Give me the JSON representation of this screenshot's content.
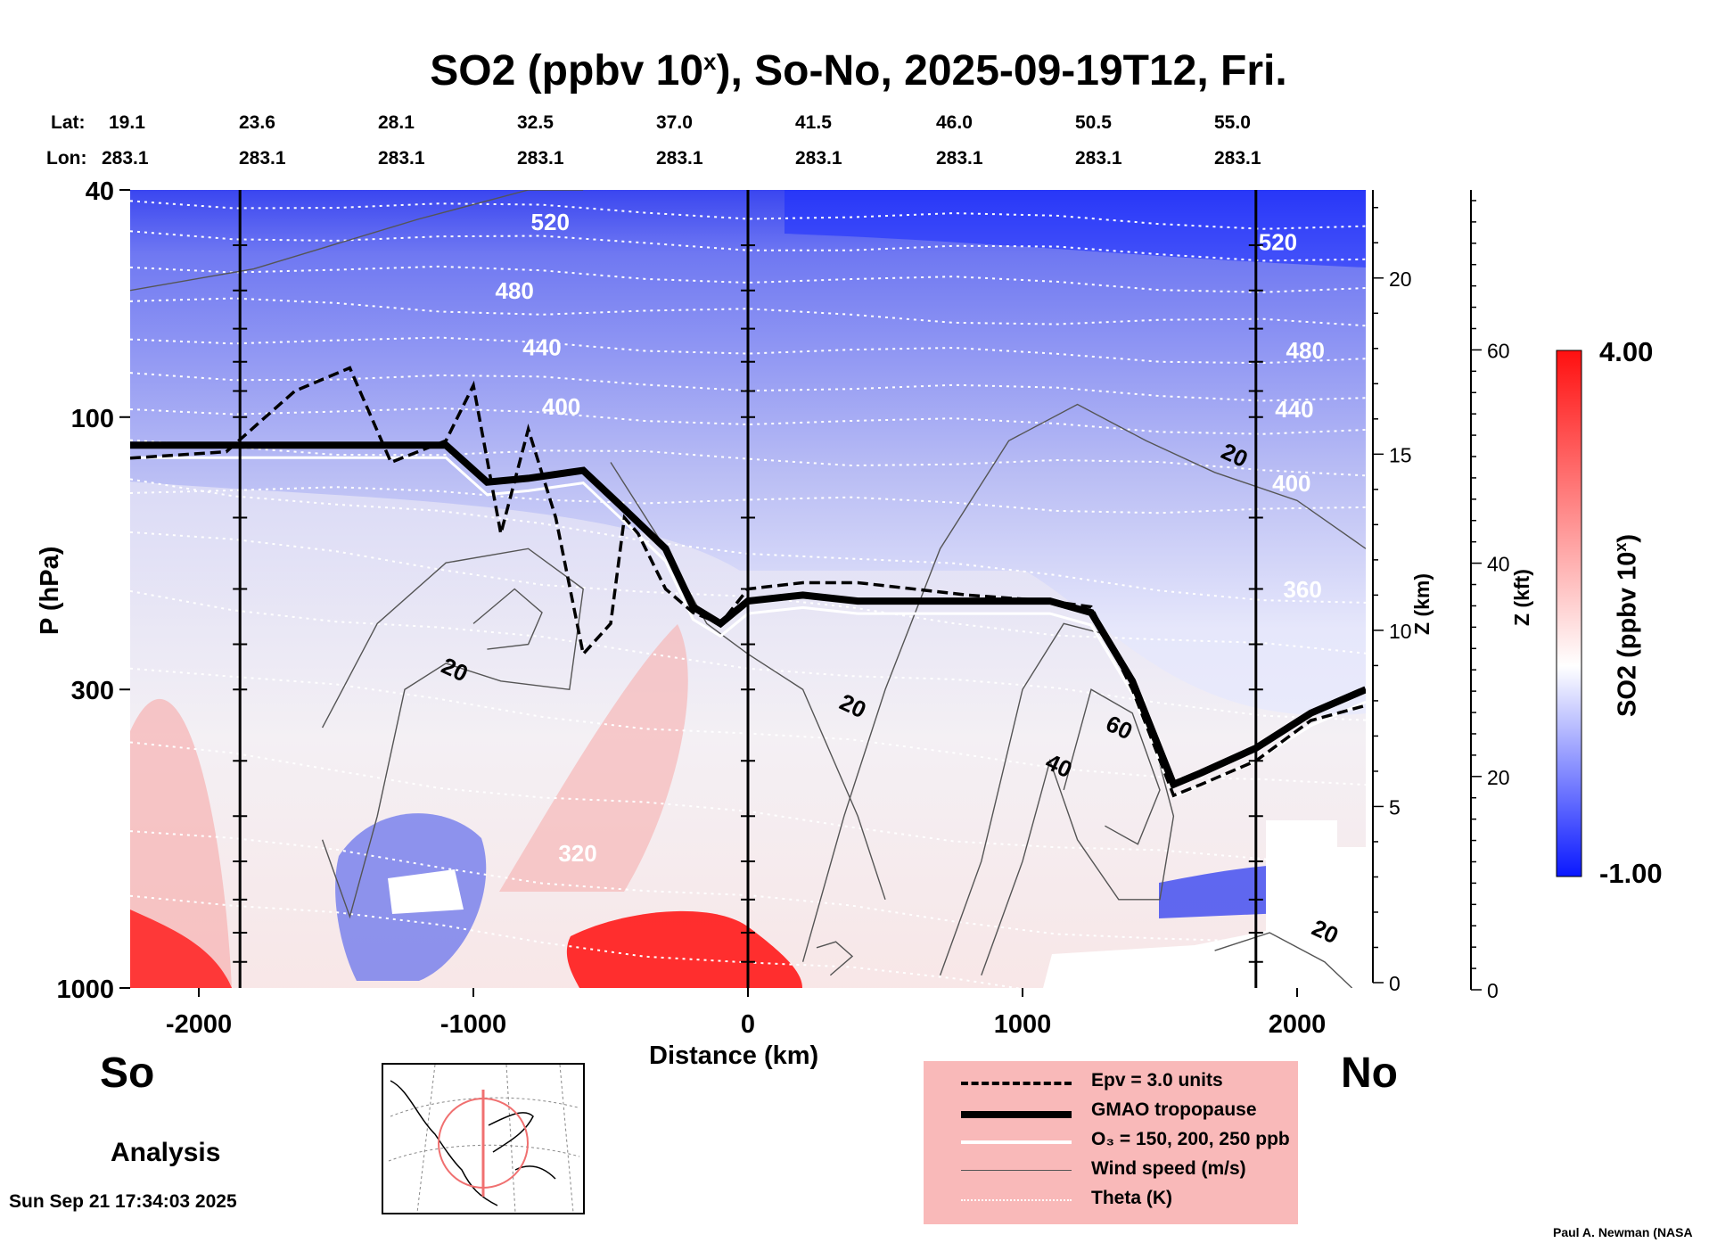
{
  "title": {
    "main": "SO2 (ppbv 10",
    "sup": "x",
    "rest": "), So-No, 2025-09-19T12, Fri."
  },
  "coords": {
    "lat_label": "Lat:",
    "lon_label": "Lon:",
    "lats": [
      "19.1",
      "23.6",
      "28.1",
      "32.5",
      "37.0",
      "41.5",
      "46.0",
      "50.5",
      "55.0"
    ],
    "lons": [
      "283.1",
      "283.1",
      "283.1",
      "283.1",
      "283.1",
      "283.1",
      "283.1",
      "283.1",
      "283.1"
    ]
  },
  "labels": {
    "so": "So",
    "no": "No",
    "analysis": "Analysis",
    "timestamp": "Sun Sep 21 17:34:03 2025",
    "credit": "Paul A. Newman (NASA"
  },
  "legend": [
    {
      "label": "Epv = 3.0 units",
      "style": "dashed"
    },
    {
      "label": "GMAO tropopause",
      "style": "thick"
    },
    {
      "label": "O₃ = 150, 200, 250 ppb",
      "style": "white"
    },
    {
      "label": "Wind speed (m/s)",
      "style": "thin"
    },
    {
      "label": "Theta (K)",
      "style": "dotted"
    }
  ],
  "colorbar": {
    "max_label": "4.00",
    "min_label": "-1.00",
    "label": "SO2 (ppbv 10",
    "label_sup": "x",
    "label_end": ")",
    "colors": {
      "high": "#ff1010",
      "mid": "#ffffff",
      "low": "#0a18ff"
    }
  },
  "chart_data": {
    "type": "heatmap",
    "title": "SO2 (ppbv 10^x), So-No, 2025-09-19T12, Fri.",
    "xlabel": "Distance (km)",
    "ylabel": "P (hPa)",
    "y2label": "Z (km)",
    "y3label": "Z (kft)",
    "xlim": [
      -2250,
      2250
    ],
    "ylim_hpa": [
      1000,
      40
    ],
    "x_ticks": [
      -2000,
      -1000,
      0,
      1000,
      2000
    ],
    "x_tick_labels": [
      "-2000",
      "-1000",
      "0",
      "1000",
      "2000"
    ],
    "p_ticks": [
      40,
      100,
      300,
      1000
    ],
    "p_tick_labels": [
      "40",
      "100",
      "300",
      "1000"
    ],
    "z_km_ticks": [
      0,
      5,
      10,
      15,
      20
    ],
    "z_km_tick_labels": [
      "0",
      "5",
      "10",
      "15",
      "20"
    ],
    "z_kft_ticks": [
      0,
      20,
      40,
      60
    ],
    "z_kft_tick_labels": [
      "0",
      "20",
      "40",
      "60"
    ],
    "colorbar_range": [
      -1.0,
      4.0
    ],
    "section_markers_km": [
      -1850,
      0,
      1850
    ],
    "theta_labels": [
      {
        "value": "520",
        "x": -720,
        "p": 47
      },
      {
        "value": "480",
        "x": -850,
        "p": 62
      },
      {
        "value": "440",
        "x": -750,
        "p": 78
      },
      {
        "value": "400",
        "x": -680,
        "p": 99
      },
      {
        "value": "320",
        "x": -620,
        "p": 600
      },
      {
        "value": "520",
        "x": 1930,
        "p": 51
      },
      {
        "value": "480",
        "x": 2030,
        "p": 79
      },
      {
        "value": "440",
        "x": 1990,
        "p": 100
      },
      {
        "value": "400",
        "x": 1980,
        "p": 135
      },
      {
        "value": "360",
        "x": 2020,
        "p": 207
      }
    ],
    "wind_labels": [
      {
        "value": "20",
        "x": -1080,
        "p": 285
      },
      {
        "value": "20",
        "x": 1760,
        "p": 120
      },
      {
        "value": "20",
        "x": 370,
        "p": 330
      },
      {
        "value": "40",
        "x": 1120,
        "p": 420
      },
      {
        "value": "60",
        "x": 1340,
        "p": 360
      },
      {
        "value": "20",
        "x": 2090,
        "p": 820
      }
    ],
    "tropopause_km": [
      -2250,
      -1800,
      -1100,
      -950,
      -800,
      -600,
      -450,
      -300,
      -200,
      -100,
      0,
      200,
      400,
      800,
      1100,
      1250,
      1400,
      1550,
      1650,
      1850,
      2050,
      2250
    ],
    "tropopause_hpa": [
      112,
      112,
      112,
      130,
      128,
      124,
      145,
      170,
      215,
      230,
      210,
      205,
      210,
      210,
      210,
      220,
      290,
      440,
      420,
      380,
      330,
      300
    ],
    "epv_km": [
      -2250,
      -1900,
      -1650,
      -1450,
      -1300,
      -1100,
      -1000,
      -900,
      -800,
      -700,
      -600,
      -500,
      -450,
      -400,
      -300,
      -200,
      -100,
      0,
      200,
      400,
      800,
      1100,
      1250,
      1400,
      1550,
      1650,
      1850,
      2050,
      2250
    ],
    "epv_hpa": [
      118,
      115,
      90,
      82,
      120,
      110,
      88,
      160,
      105,
      150,
      260,
      230,
      150,
      160,
      200,
      220,
      230,
      200,
      195,
      195,
      205,
      210,
      215,
      300,
      460,
      440,
      400,
      340,
      320
    ]
  }
}
